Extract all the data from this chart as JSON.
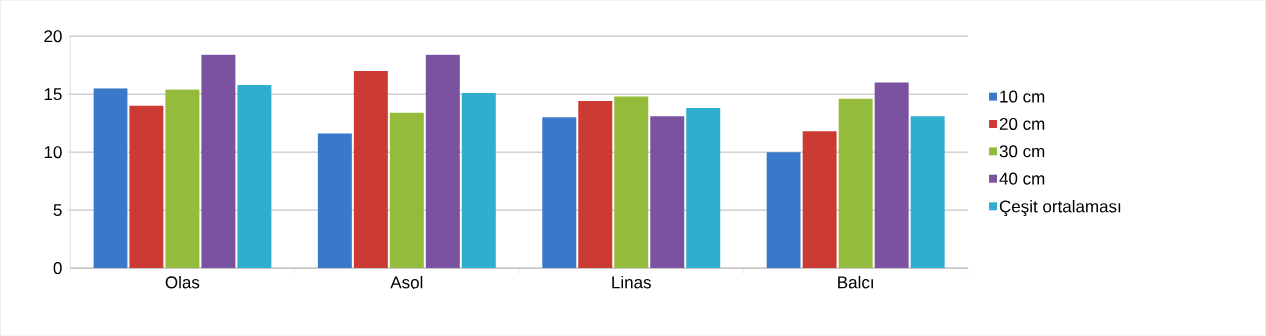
{
  "chart_data": {
    "type": "bar",
    "categories": [
      "Olas",
      "Asol",
      "Linas",
      "Balcı"
    ],
    "series": [
      {
        "name": "10 cm",
        "color": "#3a78c9",
        "values": [
          15.5,
          11.6,
          13.0,
          10.0
        ]
      },
      {
        "name": "20 cm",
        "color": "#cc3a34",
        "values": [
          14.0,
          17.0,
          14.4,
          11.8
        ]
      },
      {
        "name": "30 cm",
        "color": "#95bb3c",
        "values": [
          15.4,
          13.4,
          14.8,
          14.6
        ]
      },
      {
        "name": "40 cm",
        "color": "#7a52a0",
        "values": [
          18.4,
          18.4,
          13.1,
          16.0
        ]
      },
      {
        "name": "Çeşit ortalaması",
        "color": "#30aece",
        "values": [
          15.8,
          15.1,
          13.8,
          13.1
        ]
      }
    ],
    "ylim": [
      0,
      20
    ],
    "yticks": [
      0,
      5,
      10,
      15,
      20
    ],
    "grid": "y",
    "legend": "right"
  }
}
